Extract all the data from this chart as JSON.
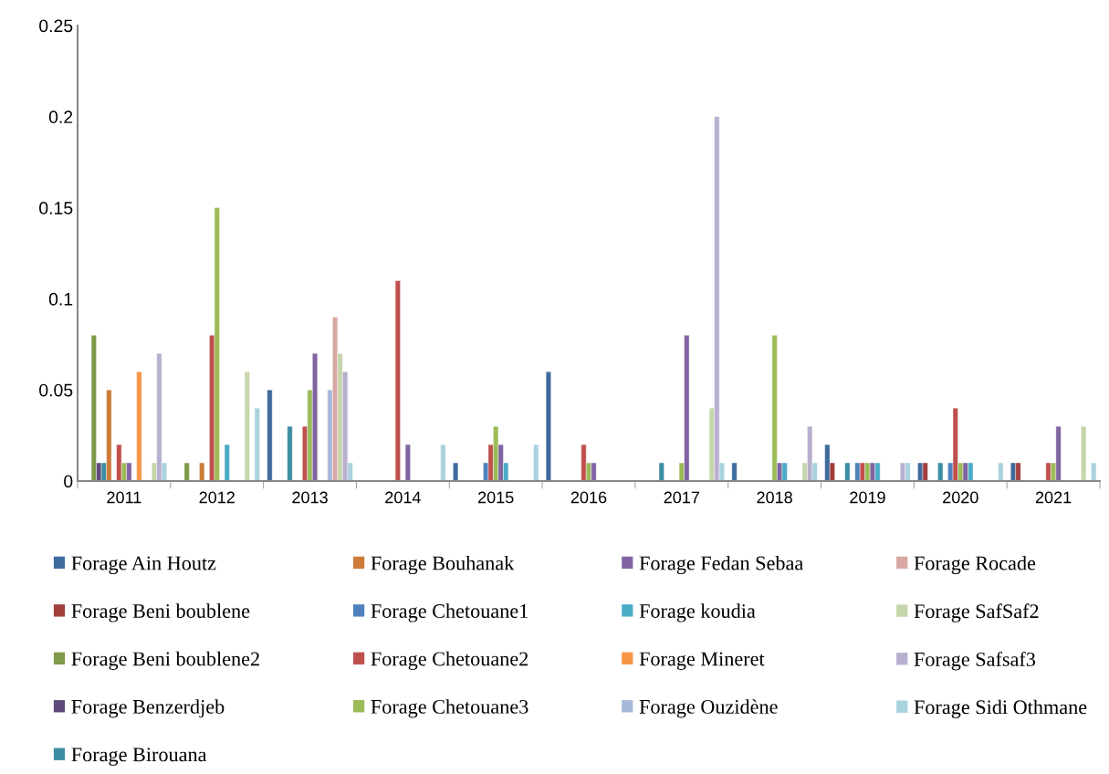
{
  "chart_data": {
    "type": "bar",
    "categories": [
      "2011",
      "2012",
      "2013",
      "2014",
      "2015",
      "2016",
      "2017",
      "2018",
      "2019",
      "2020",
      "2021"
    ],
    "ylim": [
      0,
      0.25
    ],
    "yticks": [
      0,
      0.05,
      0.1,
      0.15,
      0.2,
      0.25
    ],
    "grid": false,
    "legend": "bottom",
    "series": [
      {
        "name": "Forage Ain Houtz",
        "color": "#3f6a9c",
        "values": [
          null,
          null,
          0.05,
          null,
          0.01,
          0.06,
          null,
          0.01,
          0.02,
          0.01,
          0.01
        ]
      },
      {
        "name": "Forage Beni boublene",
        "color": "#a03f3c",
        "values": [
          null,
          null,
          null,
          null,
          null,
          null,
          null,
          null,
          0.01,
          0.01,
          0.01
        ]
      },
      {
        "name": "Forage Beni boublene2",
        "color": "#7f9a48",
        "values": [
          0.08,
          0.01,
          null,
          null,
          null,
          null,
          null,
          null,
          null,
          null,
          null
        ]
      },
      {
        "name": "Forage Benzerdjeb",
        "color": "#5f4a7b",
        "values": [
          0.01,
          null,
          null,
          null,
          null,
          null,
          null,
          null,
          null,
          null,
          null
        ]
      },
      {
        "name": "Forage Birouana",
        "color": "#3c8da3",
        "values": [
          0.01,
          null,
          0.03,
          null,
          null,
          null,
          0.01,
          null,
          0.01,
          0.01,
          null
        ]
      },
      {
        "name": "Forage Bouhanak",
        "color": "#cc7b38",
        "values": [
          0.05,
          0.01,
          null,
          null,
          null,
          null,
          null,
          null,
          null,
          null,
          null
        ]
      },
      {
        "name": "Forage Chetouane1",
        "color": "#4f81bd",
        "values": [
          null,
          null,
          null,
          null,
          0.01,
          null,
          null,
          null,
          0.01,
          0.01,
          null
        ]
      },
      {
        "name": "Forage Chetouane2",
        "color": "#c0504d",
        "values": [
          0.02,
          0.08,
          0.03,
          0.11,
          0.02,
          0.02,
          null,
          null,
          0.01,
          0.04,
          0.01
        ]
      },
      {
        "name": "Forage Chetouane3",
        "color": "#9bbb59",
        "values": [
          0.01,
          0.15,
          0.05,
          null,
          0.03,
          0.01,
          0.01,
          0.08,
          0.01,
          0.01,
          0.01
        ]
      },
      {
        "name": "Forage Fedan Sebaa",
        "color": "#8064a2",
        "values": [
          0.01,
          null,
          0.07,
          0.02,
          0.02,
          0.01,
          0.08,
          0.01,
          0.01,
          0.01,
          0.03
        ]
      },
      {
        "name": "Forage koudia",
        "color": "#4bacc6",
        "values": [
          null,
          0.02,
          null,
          null,
          0.01,
          null,
          null,
          0.01,
          0.01,
          0.01,
          null
        ]
      },
      {
        "name": "Forage Mineret",
        "color": "#f79646",
        "values": [
          0.06,
          null,
          null,
          null,
          null,
          null,
          null,
          null,
          null,
          null,
          null
        ]
      },
      {
        "name": "Forage Ouzidène",
        "color": "#a7b9da",
        "values": [
          null,
          null,
          0.05,
          null,
          null,
          null,
          null,
          null,
          null,
          null,
          null
        ]
      },
      {
        "name": "Forage Rocade",
        "color": "#d9a7a6",
        "values": [
          null,
          null,
          0.09,
          null,
          null,
          null,
          null,
          null,
          null,
          null,
          null
        ]
      },
      {
        "name": "Forage SafSaf2",
        "color": "#c6d6ab",
        "values": [
          0.01,
          0.06,
          0.07,
          null,
          null,
          null,
          0.04,
          0.01,
          null,
          null,
          0.03
        ]
      },
      {
        "name": "Forage Safsaf3",
        "color": "#b9afcf",
        "values": [
          0.07,
          null,
          0.06,
          null,
          null,
          null,
          0.2,
          0.03,
          0.01,
          null,
          null
        ]
      },
      {
        "name": "Forage Sidi Othmane",
        "color": "#a9d2df",
        "values": [
          0.01,
          0.04,
          0.01,
          0.02,
          0.02,
          null,
          0.01,
          0.01,
          0.01,
          0.01,
          0.01
        ]
      }
    ]
  }
}
